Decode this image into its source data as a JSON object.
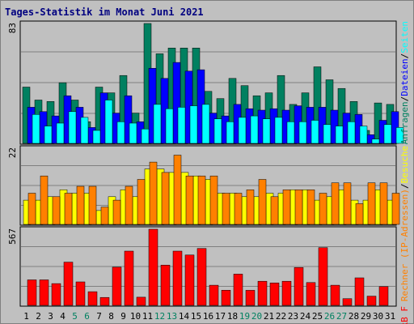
{
  "title": "Tages-Statistik im Monat Juni 2021",
  "colors": {
    "background": "#c0c0c0",
    "title": "#000080",
    "anfragen": "#008060",
    "dateien": "#0000ff",
    "seiten": "#00ffff",
    "besuche": "#ffff00",
    "rechner": "#ff8000",
    "kbf": "#ff0000",
    "weekday_label": "#000000",
    "weekend_label": "#008060"
  },
  "right_labels": {
    "top": [
      "Anfragen",
      "/",
      "Dateien",
      "/",
      "Seiten"
    ],
    "mid": [
      "Rechner (IP-Adressen)",
      "/",
      "Besuche"
    ],
    "bot": "kB F"
  },
  "chart_data": [
    {
      "type": "bar",
      "panel": "top",
      "ymax_label": "83",
      "ylim": [
        0,
        83
      ],
      "categories": [
        "1",
        "2",
        "3",
        "4",
        "5",
        "6",
        "7",
        "8",
        "9",
        "10",
        "11",
        "12",
        "13",
        "14",
        "15",
        "16",
        "17",
        "18",
        "19",
        "20",
        "21",
        "22",
        "23",
        "24",
        "25",
        "26",
        "27",
        "28",
        "29",
        "30",
        "31"
      ],
      "weekend_days": [
        5,
        6,
        12,
        13,
        19,
        20,
        26,
        27
      ],
      "series": [
        {
          "name": "Anfragen",
          "color": "#008060",
          "values": [
            39,
            30,
            29,
            42,
            30,
            15,
            39,
            35,
            47,
            21,
            83,
            62,
            66,
            66,
            66,
            36,
            31,
            45,
            40,
            33,
            35,
            47,
            27,
            35,
            53,
            44,
            38,
            29,
            9,
            28,
            27
          ]
        },
        {
          "name": "Dateien",
          "color": "#0000ff",
          "values": [
            25,
            22,
            19,
            33,
            25,
            11,
            35,
            21,
            33,
            15,
            52,
            45,
            56,
            50,
            51,
            21,
            19,
            27,
            24,
            23,
            24,
            23,
            26,
            25,
            25,
            23,
            21,
            20,
            6,
            16,
            22
          ]
        },
        {
          "name": "Seiten",
          "color": "#00ffff",
          "values": [
            20,
            12,
            14,
            22,
            18,
            9,
            30,
            15,
            14,
            10,
            27,
            24,
            25,
            26,
            27,
            17,
            15,
            18,
            19,
            17,
            18,
            15,
            15,
            16,
            13,
            12,
            15,
            12,
            3,
            13,
            11
          ]
        }
      ]
    },
    {
      "type": "bar",
      "panel": "middle",
      "ymax_label": "22",
      "ylim": [
        0,
        22
      ],
      "categories": [
        "1",
        "2",
        "3",
        "4",
        "5",
        "6",
        "7",
        "8",
        "9",
        "10",
        "11",
        "12",
        "13",
        "14",
        "15",
        "16",
        "17",
        "18",
        "19",
        "20",
        "21",
        "22",
        "23",
        "24",
        "25",
        "26",
        "27",
        "28",
        "29",
        "30",
        "31"
      ],
      "series": [
        {
          "name": "Besuche",
          "color": "#ffff00",
          "values": [
            7,
            7,
            8,
            10,
            9,
            9,
            4,
            8,
            10,
            8,
            16,
            16,
            15,
            15,
            14,
            13,
            9,
            9,
            8,
            8,
            9,
            9,
            10,
            10,
            7,
            8,
            10,
            7,
            7,
            10,
            7
          ]
        },
        {
          "name": "Rechner (IP-Adressen)",
          "color": "#ff8000",
          "values": [
            9,
            14,
            8,
            9,
            11,
            11,
            5,
            7,
            11,
            13,
            18,
            15,
            20,
            14,
            14,
            14,
            9,
            9,
            10,
            13,
            8,
            10,
            10,
            10,
            9,
            12,
            12,
            6,
            12,
            12,
            9
          ]
        }
      ]
    },
    {
      "type": "bar",
      "panel": "bottom",
      "ymax_label": "567",
      "ylim": [
        0,
        567
      ],
      "categories": [
        "1",
        "2",
        "3",
        "4",
        "5",
        "6",
        "7",
        "8",
        "9",
        "10",
        "11",
        "12",
        "13",
        "14",
        "15",
        "16",
        "17",
        "18",
        "19",
        "20",
        "21",
        "22",
        "23",
        "24",
        "25",
        "26",
        "27",
        "28",
        "29",
        "30",
        "31"
      ],
      "series": [
        {
          "name": "kB F",
          "color": "#ff0000",
          "values": [
            190,
            190,
            162,
            322,
            175,
            102,
            59,
            285,
            404,
            61,
            567,
            300,
            404,
            375,
            424,
            150,
            113,
            233,
            112,
            180,
            167,
            180,
            282,
            170,
            430,
            150,
            50,
            205,
            69,
            140,
            0
          ]
        }
      ]
    }
  ]
}
